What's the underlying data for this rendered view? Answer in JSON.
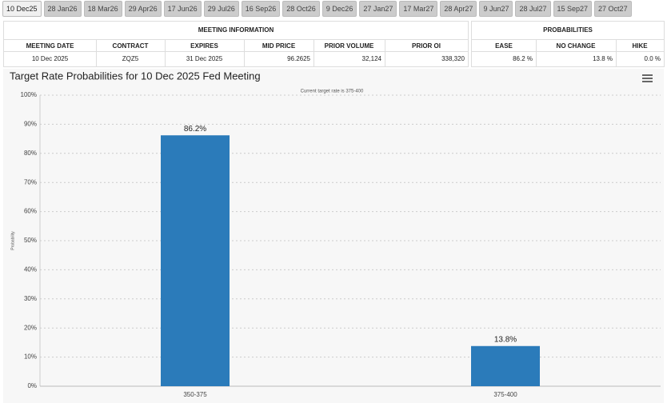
{
  "tabs": [
    "10 Dec25",
    "28 Jan26",
    "18 Mar26",
    "29 Apr26",
    "17 Jun26",
    "29 Jul26",
    "16 Sep26",
    "28 Oct26",
    "9 Dec26",
    "27 Jan27",
    "17 Mar27",
    "28 Apr27",
    "9 Jun27",
    "28 Jul27",
    "15 Sep27",
    "27 Oct27"
  ],
  "meeting_info": {
    "title": "MEETING INFORMATION",
    "columns": [
      "MEETING DATE",
      "CONTRACT",
      "EXPIRES",
      "MID PRICE",
      "PRIOR VOLUME",
      "PRIOR OI"
    ],
    "row": [
      "10 Dec 2025",
      "ZQZ5",
      "31 Dec 2025",
      "96.2625",
      "32,124",
      "338,320"
    ]
  },
  "probabilities": {
    "title": "PROBABILITIES",
    "columns": [
      "EASE",
      "NO CHANGE",
      "HIKE"
    ],
    "row": [
      "86.2 %",
      "13.8 %",
      "0.0 %"
    ]
  },
  "chart_data": {
    "type": "bar",
    "title": "Target Rate Probabilities for 10 Dec 2025 Fed Meeting",
    "subtitle": "Current target rate is 375-400",
    "y_label": "Probability",
    "categories": [
      "350-375",
      "375-400"
    ],
    "values": [
      86.2,
      13.8
    ],
    "value_labels": [
      "86.2%",
      "13.8%"
    ],
    "color": "#2b7bba",
    "ylim": [
      0,
      100
    ],
    "yticks": [
      {
        "value": 0,
        "label": "0%"
      },
      {
        "value": 10,
        "label": "10%"
      },
      {
        "value": 20,
        "label": "20%"
      },
      {
        "value": 30,
        "label": "30%"
      },
      {
        "value": 40,
        "label": "40%"
      },
      {
        "value": 50,
        "label": "50%"
      },
      {
        "value": 60,
        "label": "60%"
      },
      {
        "value": 70,
        "label": "70%"
      },
      {
        "value": 80,
        "label": "80%"
      },
      {
        "value": 90,
        "label": "90%"
      },
      {
        "value": 100,
        "label": "100%"
      }
    ],
    "grid": true
  }
}
